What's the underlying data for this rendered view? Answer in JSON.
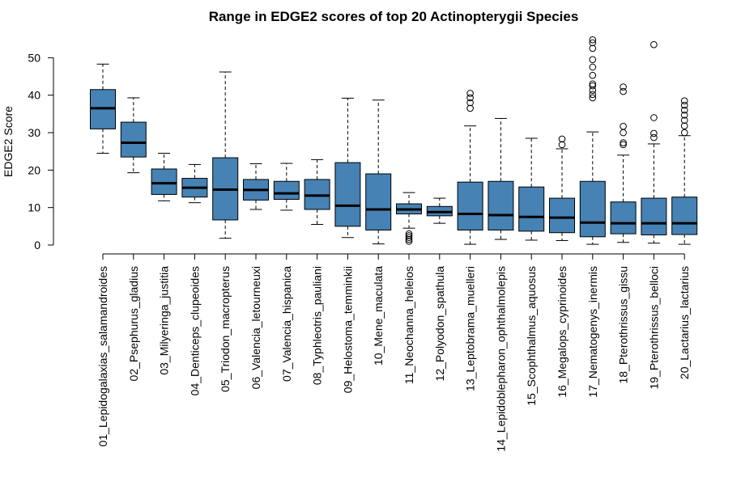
{
  "chart_data": {
    "type": "boxplot",
    "title": "Range in EDGE2 scores of top 20 Actinopterygii Species",
    "xlabel": "",
    "ylabel": "EDGE2 Score",
    "ylim": [
      0,
      55
    ],
    "yticks": [
      0,
      10,
      20,
      30,
      40,
      50
    ],
    "box_color": "#4682B4",
    "grid": false,
    "categories": [
      "01_Lepidogalaxias_salamandroides",
      "02_Psephurus_gladius",
      "03_Milyeringa_justitia",
      "04_Denticeps_clupeoides",
      "05_Triodon_macropterus",
      "06_Valencia_letourneuxi",
      "07_Valencia_hispanica",
      "08_Typhleotris_pauliani",
      "09_Helostoma_temminkii",
      "10_Mene_maculata",
      "11_Neochanna_heleios",
      "12_Polyodon_spathula",
      "13_Leptobrama_muelleri",
      "14_Lepidoblepharon_ophthalmolepis",
      "15_Scophthalmus_aquosus",
      "16_Megalops_cyprinoides",
      "17_Nematogenys_inermis",
      "18_Pterothrissus_gissu",
      "19_Pterothrissus_belloci",
      "20_Lactarius_lactarius"
    ],
    "boxes": [
      {
        "whisker_low": 24.5,
        "q1": 31.0,
        "median": 36.5,
        "q3": 41.5,
        "whisker_high": 48.3,
        "outliers": []
      },
      {
        "whisker_low": 19.3,
        "q1": 23.5,
        "median": 27.3,
        "q3": 32.8,
        "whisker_high": 39.3,
        "outliers": []
      },
      {
        "whisker_low": 11.8,
        "q1": 13.5,
        "median": 16.5,
        "q3": 20.3,
        "whisker_high": 24.5,
        "outliers": []
      },
      {
        "whisker_low": 11.3,
        "q1": 12.8,
        "median": 15.3,
        "q3": 17.8,
        "whisker_high": 21.5,
        "outliers": []
      },
      {
        "whisker_low": 1.8,
        "q1": 6.7,
        "median": 14.8,
        "q3": 23.3,
        "whisker_high": 46.2,
        "outliers": []
      },
      {
        "whisker_low": 9.5,
        "q1": 12.0,
        "median": 14.7,
        "q3": 17.5,
        "whisker_high": 21.7,
        "outliers": []
      },
      {
        "whisker_low": 9.3,
        "q1": 12.2,
        "median": 13.8,
        "q3": 17.0,
        "whisker_high": 21.8,
        "outliers": []
      },
      {
        "whisker_low": 5.5,
        "q1": 9.5,
        "median": 13.2,
        "q3": 17.5,
        "whisker_high": 22.8,
        "outliers": []
      },
      {
        "whisker_low": 2.0,
        "q1": 5.0,
        "median": 10.5,
        "q3": 22.0,
        "whisker_high": 39.2,
        "outliers": []
      },
      {
        "whisker_low": 0.3,
        "q1": 4.0,
        "median": 9.5,
        "q3": 19.0,
        "whisker_high": 38.7,
        "outliers": []
      },
      {
        "whisker_low": 4.5,
        "q1": 8.3,
        "median": 9.5,
        "q3": 11.0,
        "whisker_high": 14.0,
        "outliers": [
          1.0,
          1.5,
          2.0,
          2.5,
          3.0
        ]
      },
      {
        "whisker_low": 5.8,
        "q1": 7.8,
        "median": 8.8,
        "q3": 10.3,
        "whisker_high": 12.5,
        "outliers": []
      },
      {
        "whisker_low": 0.2,
        "q1": 4.0,
        "median": 8.3,
        "q3": 16.8,
        "whisker_high": 31.8,
        "outliers": [
          36.5,
          38.0,
          39.3,
          40.5
        ]
      },
      {
        "whisker_low": 1.5,
        "q1": 4.0,
        "median": 8.0,
        "q3": 17.0,
        "whisker_high": 33.8,
        "outliers": []
      },
      {
        "whisker_low": 1.3,
        "q1": 3.7,
        "median": 7.5,
        "q3": 15.5,
        "whisker_high": 28.5,
        "outliers": []
      },
      {
        "whisker_low": 1.2,
        "q1": 3.3,
        "median": 7.3,
        "q3": 12.5,
        "whisker_high": 25.7,
        "outliers": [
          26.8,
          28.3
        ]
      },
      {
        "whisker_low": 0.2,
        "q1": 2.2,
        "median": 6.0,
        "q3": 17.0,
        "whisker_high": 30.2,
        "outliers": [
          39.3,
          40.2,
          41.3,
          42.5,
          43.0,
          45.3,
          47.5,
          49.5,
          52.5,
          54.0,
          54.8
        ]
      },
      {
        "whisker_low": 0.7,
        "q1": 3.0,
        "median": 5.8,
        "q3": 11.5,
        "whisker_high": 24.0,
        "outliers": [
          26.8,
          27.3,
          30.0,
          31.7,
          41.0,
          42.2
        ]
      },
      {
        "whisker_low": 0.5,
        "q1": 2.7,
        "median": 5.8,
        "q3": 12.5,
        "whisker_high": 27.0,
        "outliers": [
          28.7,
          29.8,
          34.0,
          53.5
        ]
      },
      {
        "whisker_low": 0.2,
        "q1": 2.8,
        "median": 5.8,
        "q3": 12.8,
        "whisker_high": 29.2,
        "outliers": [
          30.0,
          31.8,
          33.3,
          34.7,
          36.0,
          37.3,
          38.5
        ]
      }
    ]
  }
}
